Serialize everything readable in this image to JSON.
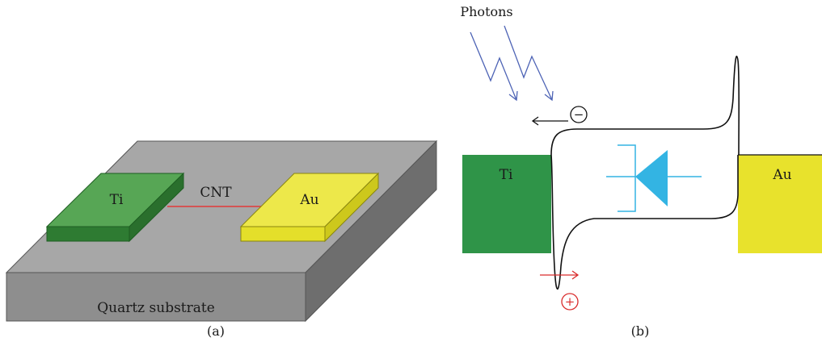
{
  "panel_a": {
    "caption": "(a)",
    "substrate_label": "Quartz substrate",
    "left_electrode_label": "Ti",
    "right_electrode_label": "Au",
    "nanotube_label": "CNT"
  },
  "panel_b": {
    "caption": "(b)",
    "photons_label": "Photons",
    "left_metal_label": "Ti",
    "right_metal_label": "Au",
    "electron_symbol": "−",
    "hole_symbol": "+"
  },
  "colors": {
    "substrate_top": "#a7a7a7",
    "substrate_front": "#8e8e8e",
    "substrate_side": "#6e6e6e",
    "ti_green": "#57a655",
    "ti_green_dark": "#2e7b32",
    "au_yellow": "#ede84a",
    "au_yellow_dark": "#d7d21e",
    "cnt_red": "#e23a3a",
    "photon_blue": "#4d63b5",
    "diode_cyan": "#33b4e3",
    "hole_red": "#d92a2a"
  }
}
